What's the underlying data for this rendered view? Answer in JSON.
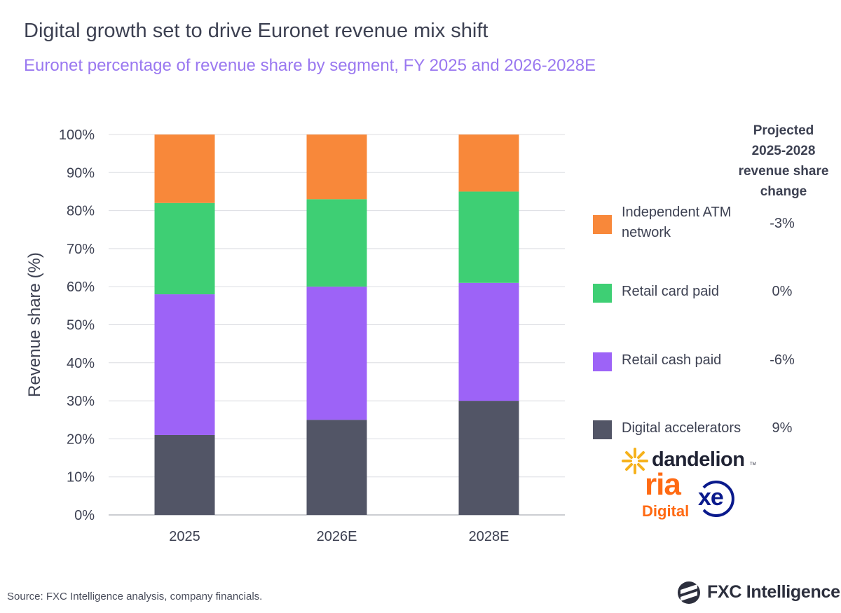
{
  "title": "Digital growth set to drive Euronet revenue mix shift",
  "subtitle": "Euronet percentage of revenue share by segment, FY 2025 and 2026-2028E",
  "chart_data": {
    "type": "bar",
    "stacked": true,
    "categories": [
      "2025",
      "2026E",
      "2028E"
    ],
    "series": [
      {
        "name": "Digital accelerators",
        "color": "#525566",
        "values": [
          21,
          25,
          30
        ]
      },
      {
        "name": "Retail cash paid",
        "color": "#9d63f7",
        "values": [
          37,
          35,
          31
        ]
      },
      {
        "name": "Retail card paid",
        "color": "#3ecf74",
        "values": [
          24,
          23,
          24
        ]
      },
      {
        "name": "Independent ATM network",
        "color": "#f8883a",
        "values": [
          18,
          17,
          15
        ]
      }
    ],
    "ylabel": "Revenue share (%)",
    "ylim": [
      0,
      100
    ],
    "yticks": [
      "0%",
      "10%",
      "20%",
      "30%",
      "40%",
      "50%",
      "60%",
      "70%",
      "80%",
      "90%",
      "100%"
    ],
    "grid": true
  },
  "legend": {
    "heading_lines": [
      "Projected",
      "2025-2028",
      "revenue share",
      "change"
    ],
    "items": [
      {
        "label_lines": [
          "Independent ATM",
          "network"
        ],
        "change": "-3%",
        "color": "#f8883a"
      },
      {
        "label_lines": [
          "Retail card paid"
        ],
        "change": "0%",
        "color": "#3ecf74"
      },
      {
        "label_lines": [
          "Retail cash paid"
        ],
        "change": "-6%",
        "color": "#9d63f7"
      },
      {
        "label_lines": [
          "Digital accelerators"
        ],
        "change": "9%",
        "color": "#525566"
      }
    ]
  },
  "logos": {
    "dandelion": "dandelion",
    "dandelion_tm": "TM",
    "ria_top": "ria",
    "ria_bottom": "Digital",
    "xe": "xe",
    "fxc": "FXC Intelligence"
  },
  "source": "Source: FXC Intelligence analysis, company financials."
}
